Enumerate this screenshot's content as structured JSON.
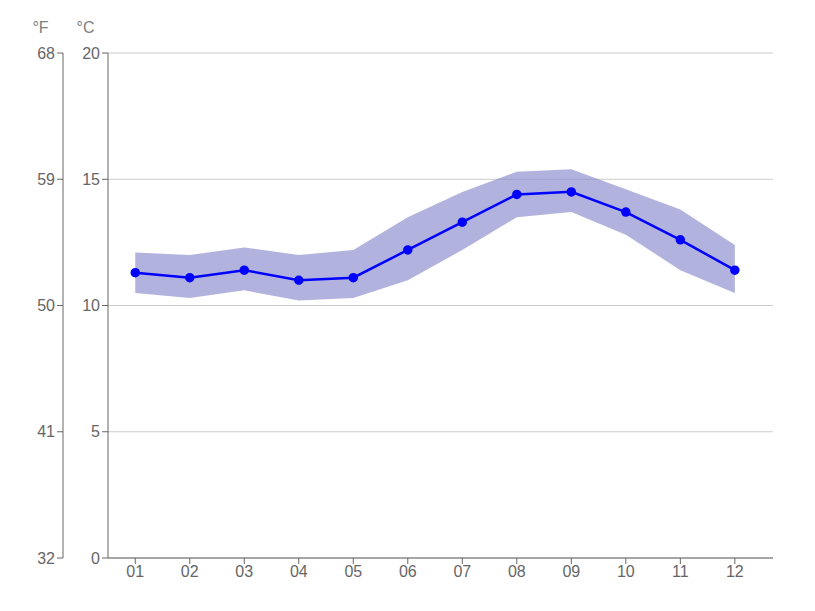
{
  "chart_data": {
    "type": "line",
    "x": [
      1,
      2,
      3,
      4,
      5,
      6,
      7,
      8,
      9,
      10,
      11,
      12
    ],
    "xlim": [
      0.5,
      12.7
    ],
    "xticks": [
      {
        "value": 1,
        "label": "01"
      },
      {
        "value": 2,
        "label": "02"
      },
      {
        "value": 3,
        "label": "03"
      },
      {
        "value": 4,
        "label": "04"
      },
      {
        "value": 5,
        "label": "05"
      },
      {
        "value": 6,
        "label": "06"
      },
      {
        "value": 7,
        "label": "07"
      },
      {
        "value": 8,
        "label": "08"
      },
      {
        "value": 9,
        "label": "09"
      },
      {
        "value": 10,
        "label": "10"
      },
      {
        "value": 11,
        "label": "11"
      },
      {
        "value": 12,
        "label": "12"
      }
    ],
    "series": [
      {
        "color": "#0000ff",
        "marker": "circle",
        "values": [
          11.3,
          11.1,
          11.4,
          11.0,
          11.1,
          12.2,
          13.3,
          14.4,
          14.5,
          13.7,
          12.6,
          11.4
        ]
      }
    ],
    "band": {
      "low": [
        10.5,
        10.3,
        10.6,
        10.2,
        10.3,
        11.0,
        12.2,
        13.5,
        13.7,
        12.8,
        11.4,
        10.5
      ],
      "high": [
        12.1,
        12.0,
        12.3,
        12.0,
        12.2,
        13.5,
        14.5,
        15.3,
        15.4,
        14.6,
        13.8,
        12.4
      ],
      "color": "#8888cc"
    },
    "ylim": [
      0,
      20
    ],
    "yticks": [
      0,
      5,
      10,
      15,
      20
    ],
    "ylabel": "°C",
    "y2lim": [
      32,
      68
    ],
    "y2ticks": [
      32,
      41,
      50,
      59,
      68
    ],
    "y2label": "°F",
    "grid": true
  }
}
